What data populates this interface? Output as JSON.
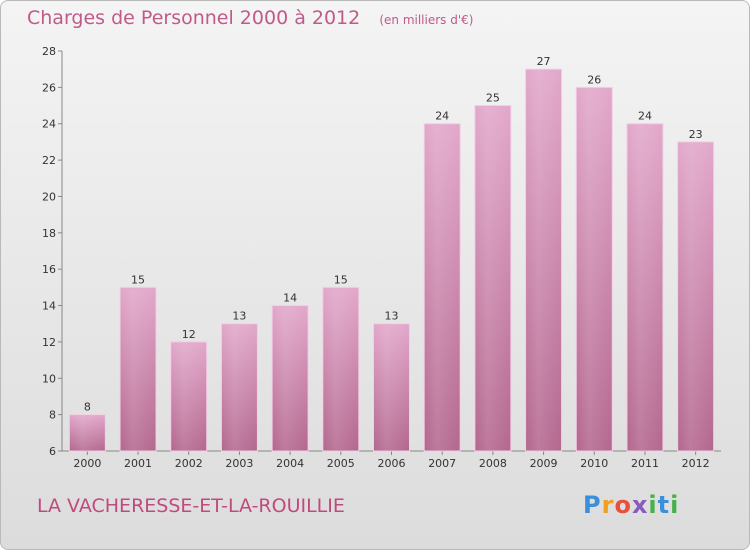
{
  "header": {
    "title": "Charges de Personnel 2000 à 2012",
    "unit": "(en milliers d'€)"
  },
  "footer": {
    "commune": "LA VACHERESSE-ET-LA-ROUILLIE",
    "logo": "Proxiti"
  },
  "chart_data": {
    "type": "bar",
    "title": "Charges de Personnel 2000 à 2012",
    "subtitle": "(en milliers d'€)",
    "xlabel": "",
    "ylabel": "",
    "categories": [
      "2000",
      "2001",
      "2002",
      "2003",
      "2004",
      "2005",
      "2006",
      "2007",
      "2008",
      "2009",
      "2010",
      "2011",
      "2012"
    ],
    "values": [
      8,
      15,
      12,
      13,
      14,
      15,
      13,
      24,
      25,
      27,
      26,
      24,
      23
    ],
    "ylim": [
      6,
      28
    ],
    "yticks": [
      6,
      8,
      10,
      12,
      14,
      16,
      18,
      20,
      22,
      24,
      26,
      28
    ],
    "grid": false,
    "legend": "none",
    "bar_color": "#d58cb4"
  }
}
